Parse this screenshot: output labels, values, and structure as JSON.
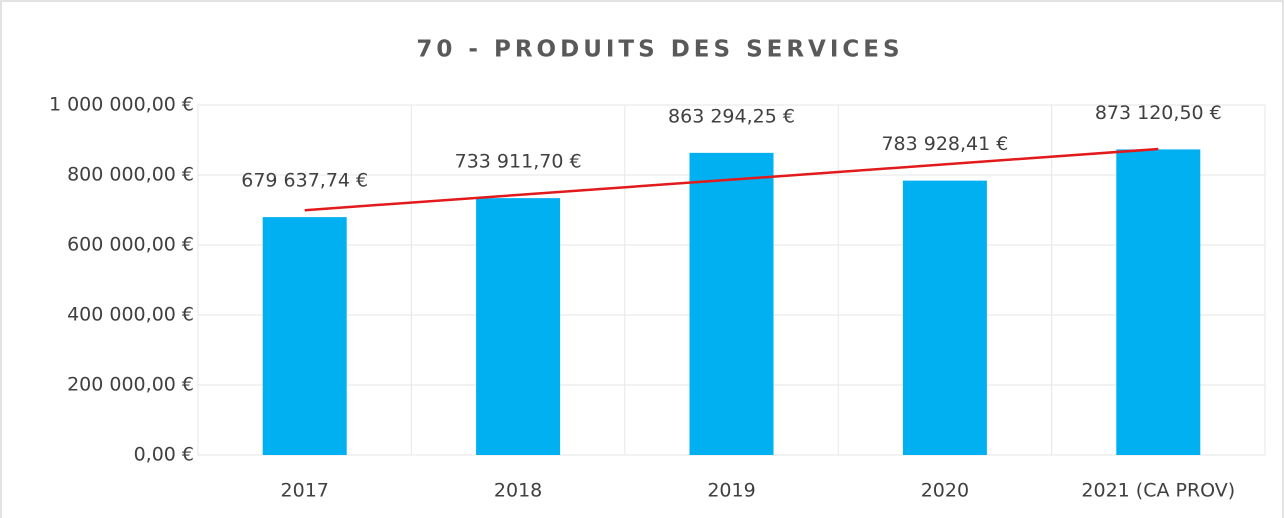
{
  "chart_data": {
    "type": "bar",
    "title": "70 - PRODUITS DES SERVICES",
    "categories": [
      "2017",
      "2018",
      "2019",
      "2020",
      "2021 (CA PROV)"
    ],
    "values": [
      679637.74,
      733911.7,
      863294.25,
      783928.41,
      873120.5
    ],
    "value_labels": [
      "679 637,74 €",
      "733 911,70 €",
      "863 294,25 €",
      "783 928,41 €",
      "873 120,50 €"
    ],
    "color": "#00b0f0",
    "ylim": [
      0,
      1000000
    ],
    "yticks": [
      {
        "value": 0,
        "label": "0,00 €"
      },
      {
        "value": 200000,
        "label": "200 000,00 €"
      },
      {
        "value": 400000,
        "label": "400 000,00 €"
      },
      {
        "value": 600000,
        "label": "600 000,00 €"
      },
      {
        "value": 800000,
        "label": "800 000,00 €"
      },
      {
        "value": 1000000,
        "label": "1 000 000,00 €"
      }
    ],
    "grid": true,
    "trendline": true,
    "trendline_color": "#e31a1c"
  }
}
